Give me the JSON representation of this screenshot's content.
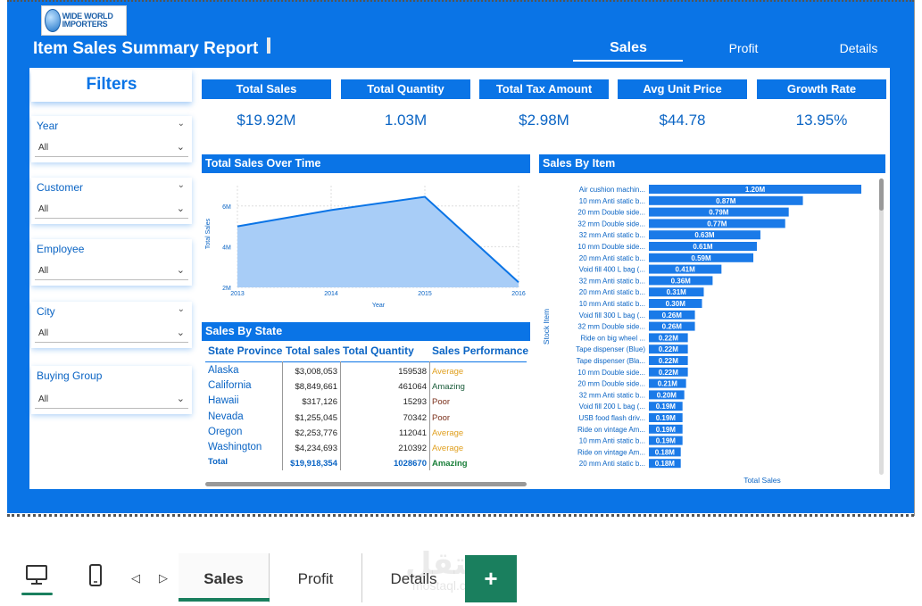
{
  "header": {
    "logo_text": "WIDE WORLD IMPORTERS",
    "title": "Item Sales Summary Report",
    "nav": [
      {
        "label": "Sales",
        "active": true
      },
      {
        "label": "Profit",
        "active": false
      },
      {
        "label": "Details",
        "active": false
      }
    ]
  },
  "filters": {
    "title": "Filters",
    "slicers": [
      {
        "label": "Year",
        "value": "All"
      },
      {
        "label": "Customer",
        "value": "All"
      },
      {
        "label": "Employee",
        "value": "All"
      },
      {
        "label": "City",
        "value": "All"
      },
      {
        "label": "Buying Group",
        "value": "All"
      }
    ]
  },
  "kpis": [
    {
      "label": "Total Sales",
      "value": "$19.92M"
    },
    {
      "label": "Total Quantity",
      "value": "1.03M"
    },
    {
      "label": "Total Tax Amount",
      "value": "$2.98M"
    },
    {
      "label": "Avg Unit Price",
      "value": "$44.78"
    },
    {
      "label": "Growth Rate",
      "value": "13.95%"
    }
  ],
  "line_chart": {
    "title": "Total Sales Over Time",
    "xlabel": "Year",
    "ylabel": "Total Sales",
    "x_ticks": [
      "2013",
      "2014",
      "2015",
      "2016"
    ],
    "y_ticks": [
      "2M",
      "4M",
      "6M"
    ],
    "ylim": [
      2,
      7
    ],
    "values": [
      5.0,
      5.8,
      6.45,
      2.25
    ],
    "color": "#0a74e6",
    "fill": "#a8cdf7"
  },
  "state_table": {
    "title": "Sales By State",
    "columns": [
      "State Province",
      "Total sales",
      "Total Quantity",
      "Sales Performance"
    ],
    "rows": [
      {
        "state": "Alaska",
        "sales": "$3,008,053",
        "qty": "159538",
        "perf": "Average",
        "perf_color": "#e0a020"
      },
      {
        "state": "California",
        "sales": "$8,849,661",
        "qty": "461064",
        "perf": "Amazing",
        "perf_color": "#1a5c3a"
      },
      {
        "state": "Hawaii",
        "sales": "$317,126",
        "qty": "15293",
        "perf": "Poor",
        "perf_color": "#7a2f1a"
      },
      {
        "state": "Nevada",
        "sales": "$1,255,045",
        "qty": "70342",
        "perf": "Poor",
        "perf_color": "#7a2f1a"
      },
      {
        "state": "Oregon",
        "sales": "$2,253,776",
        "qty": "112041",
        "perf": "Average",
        "perf_color": "#e0a020"
      },
      {
        "state": "Washington",
        "sales": "$4,234,693",
        "qty": "210392",
        "perf": "Average",
        "perf_color": "#e0a020"
      }
    ],
    "total": {
      "state": "Total",
      "sales": "$19,918,354",
      "qty": "1028670",
      "perf": "Amazing",
      "perf_color": "#1a7f3a"
    }
  },
  "chart_data": {
    "type": "bar",
    "title": "Sales By Item",
    "xlabel": "Total Sales",
    "ylabel": "Stock Item",
    "bar_color": "#1a7ae8",
    "categories": [
      "Air cushion machin...",
      "10 mm Anti static b...",
      "20 mm Double side...",
      "32 mm Double side...",
      "32 mm Anti static b...",
      "10 mm Double side...",
      "20 mm Anti static b...",
      "Void fill 400 L bag (...",
      "32 mm Anti static b...",
      "20 mm Anti static b...",
      "10 mm Anti static b...",
      "Void fill 300 L bag (...",
      "32 mm Double side...",
      "Ride on big wheel ...",
      "Tape dispenser (Blue)",
      "Tape dispenser (Bla...",
      "10 mm Double side...",
      "20 mm Double side...",
      "32 mm Anti static b...",
      "Void fill 200 L bag (...",
      "USB food flash driv...",
      "Ride on vintage Am...",
      "10 mm Anti static b...",
      "Ride on vintage Am...",
      "20 mm Anti static b..."
    ],
    "values": [
      1.2,
      0.87,
      0.79,
      0.77,
      0.63,
      0.61,
      0.59,
      0.41,
      0.36,
      0.31,
      0.3,
      0.26,
      0.26,
      0.22,
      0.22,
      0.22,
      0.22,
      0.21,
      0.2,
      0.19,
      0.19,
      0.19,
      0.19,
      0.18,
      0.18
    ],
    "labels": [
      "1.20M",
      "0.87M",
      "0.79M",
      "0.77M",
      "0.63M",
      "0.61M",
      "0.59M",
      "0.41M",
      "0.36M",
      "0.31M",
      "0.30M",
      "0.26M",
      "0.26M",
      "0.22M",
      "0.22M",
      "0.22M",
      "0.22M",
      "0.21M",
      "0.20M",
      "0.19M",
      "0.19M",
      "0.19M",
      "0.19M",
      "0.18M",
      "0.18M"
    ],
    "xlim": [
      0,
      1.2
    ]
  },
  "page_tabs": [
    {
      "label": "Sales",
      "active": true
    },
    {
      "label": "Profit",
      "active": false
    },
    {
      "label": "Details",
      "active": false
    }
  ],
  "add_label": "+",
  "watermark": {
    "ar": "مستقل",
    "en": "mostaql.com"
  },
  "icons": {
    "desktop": "desktop-icon",
    "mobile": "mobile-icon",
    "prev": "chevron-left-icon",
    "next": "chevron-right-icon",
    "chevron": "chevron-down-icon"
  }
}
